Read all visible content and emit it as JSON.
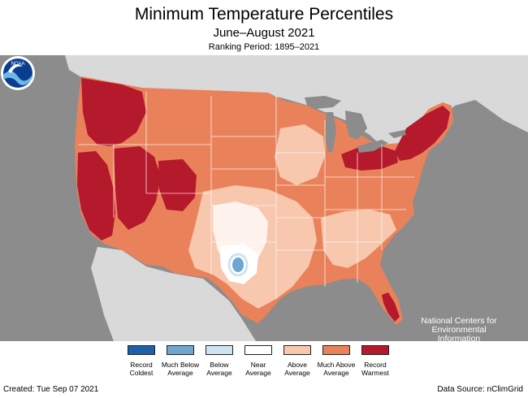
{
  "header": {
    "title": "Minimum Temperature Percentiles",
    "subtitle": "June–August 2021",
    "ranking_period": "Ranking Period: 1895–2021"
  },
  "map": {
    "region": "Contiguous United States",
    "colors": {
      "ocean_background": "#8c8c8c",
      "neighbor_land": "#d9d9d9",
      "lakes": "#8c8c8c",
      "state_borders": "#ffffff"
    },
    "organization_logo": {
      "icon": "noaa-logo-icon",
      "text": "NOAA"
    },
    "organization_name": "National Centers for Environmental Information"
  },
  "legend": {
    "items": [
      {
        "label": "Record Coldest",
        "color": "#1f5fa8"
      },
      {
        "label": "Much Below Average",
        "color": "#6ea6cf"
      },
      {
        "label": "Below Average",
        "color": "#cfe3f0"
      },
      {
        "label": "Near Average",
        "color": "#ffffff"
      },
      {
        "label": "Above Average",
        "color": "#f7c7ae"
      },
      {
        "label": "Much Above Average",
        "color": "#e9825a"
      },
      {
        "label": "Record Warmest",
        "color": "#b5192c"
      }
    ]
  },
  "footer": {
    "created": "Created: Tue Sep 07 2021",
    "data_source": "Data Source: nClimGrid"
  }
}
